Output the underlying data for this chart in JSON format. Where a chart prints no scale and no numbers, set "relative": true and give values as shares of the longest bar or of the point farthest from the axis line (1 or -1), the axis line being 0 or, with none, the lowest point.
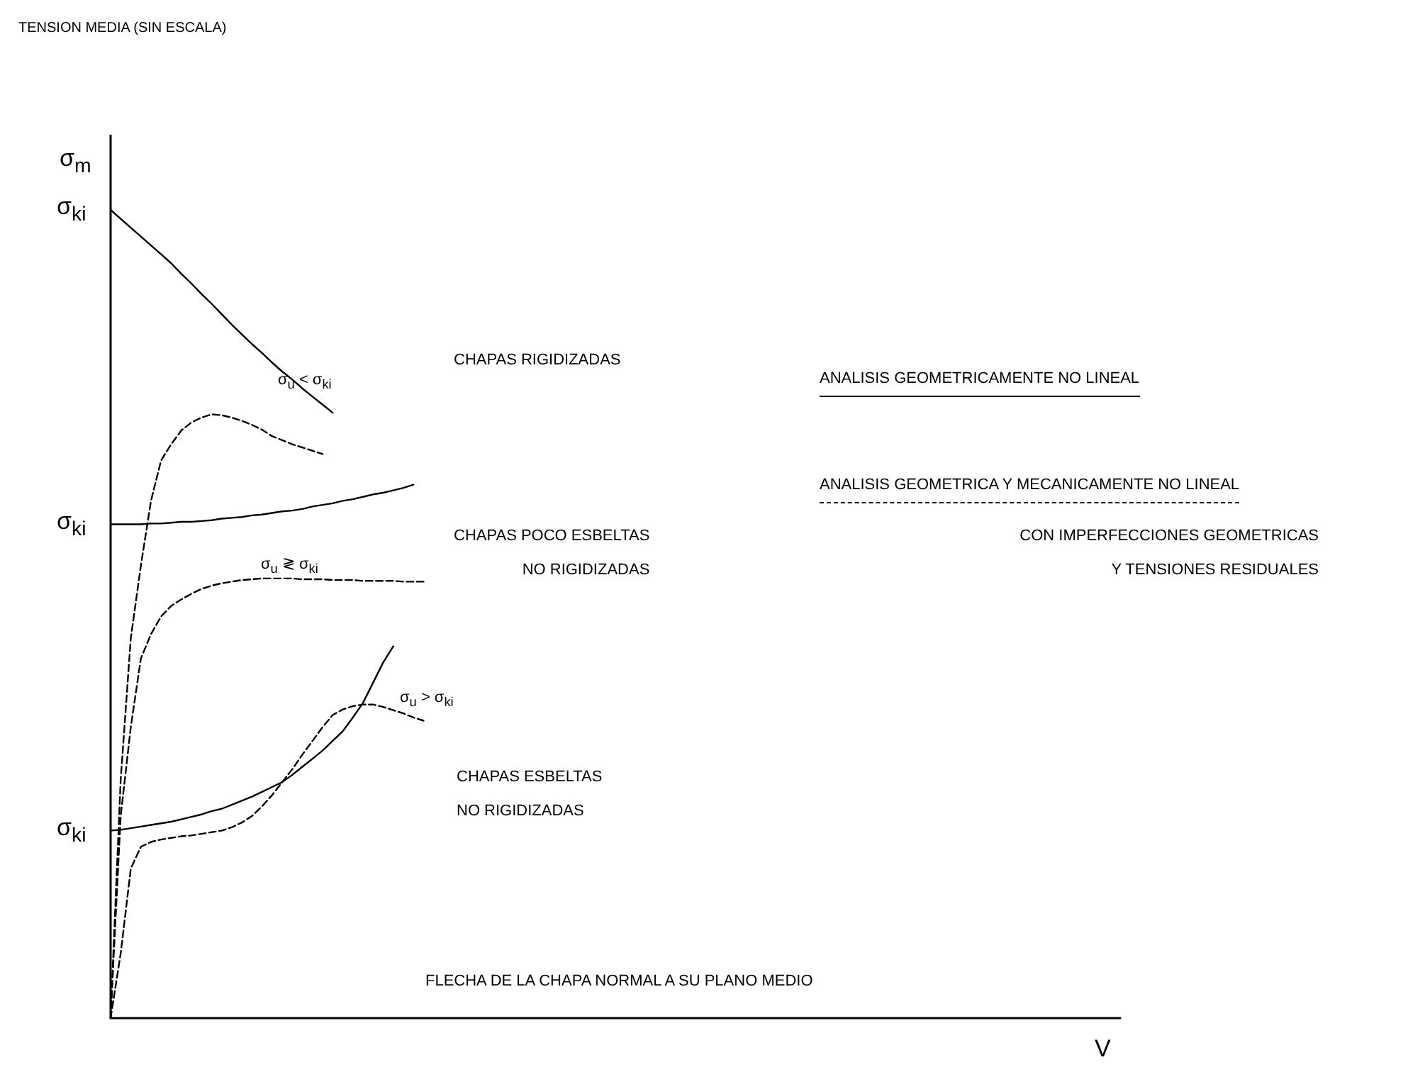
{
  "chart_data": {
    "type": "line",
    "relative": true,
    "title": "TENSION MEDIA (SIN ESCALA)",
    "ylabel": "σ$_{m}$",
    "xlabel": "V",
    "marker": "none",
    "color": "#000000",
    "categories": [
      null,
      null,
      null,
      null,
      null,
      null,
      null,
      null,
      null,
      null,
      null,
      null,
      null,
      null,
      null,
      null,
      null,
      null,
      null,
      null,
      null,
      null,
      null,
      null,
      null,
      null,
      null,
      null,
      null,
      null,
      null,
      null,
      null,
      null,
      null,
      null,
      null,
      null,
      null,
      null,
      null,
      null,
      null,
      null,
      null,
      null,
      null,
      null,
      null,
      null,
      null,
      null,
      null,
      null,
      null,
      null,
      null,
      null,
      null,
      null,
      null,
      null,
      null,
      null,
      null,
      null,
      null,
      null,
      null,
      null,
      null,
      null,
      null,
      null,
      null,
      null,
      null,
      null,
      null,
      null,
      null,
      null,
      null,
      null,
      null,
      null,
      null,
      null,
      null,
      null,
      null,
      null,
      null,
      null,
      null,
      null,
      null,
      null,
      null,
      null,
      null
    ],
    "series": [
      {
        "line_style": "solid",
        "values": [
          1.0,
          0.989,
          0.978,
          0.967,
          0.956,
          0.945,
          0.934,
          0.921,
          0.909,
          0.896,
          0.884,
          0.871,
          0.858,
          0.846,
          0.834,
          0.823,
          0.811,
          0.8,
          0.79,
          0.779,
          0.769,
          0.759,
          0.749,
          null,
          null,
          null,
          null,
          null,
          null,
          null,
          null,
          null,
          null,
          null,
          null,
          null,
          null,
          null,
          null,
          null,
          null,
          null,
          null,
          null,
          null,
          null,
          null,
          null,
          null,
          null,
          null,
          null,
          null,
          null,
          null,
          null,
          null,
          null,
          null,
          null,
          null,
          null,
          null,
          null,
          null,
          null,
          null,
          null,
          null,
          null,
          null,
          null,
          null,
          null,
          null,
          null,
          null,
          null,
          null,
          null,
          null,
          null,
          null,
          null,
          null,
          null,
          null,
          null,
          null,
          null,
          null,
          null,
          null,
          null,
          null,
          null,
          null,
          null,
          null,
          null,
          null
        ]
      },
      {
        "line_style": "dashed",
        "values": [
          0,
          0.295,
          0.47,
          0.56,
          0.64,
          0.69,
          0.71,
          0.727,
          0.737,
          0.743,
          0.747,
          0.746,
          0.743,
          0.739,
          0.734,
          0.728,
          0.72,
          0.715,
          0.71,
          0.706,
          0.702,
          0.698,
          null,
          null,
          null,
          null,
          null,
          null,
          null,
          null,
          null,
          null,
          null,
          null,
          null,
          null,
          null,
          null,
          null,
          null,
          null,
          null,
          null,
          null,
          null,
          null,
          null,
          null,
          null,
          null,
          null,
          null,
          null,
          null,
          null,
          null,
          null,
          null,
          null,
          null,
          null,
          null,
          null,
          null,
          null,
          null,
          null,
          null,
          null,
          null,
          null,
          null,
          null,
          null,
          null,
          null,
          null,
          null,
          null,
          null,
          null,
          null,
          null,
          null,
          null,
          null,
          null,
          null,
          null,
          null,
          null,
          null,
          null,
          null,
          null,
          null,
          null,
          null,
          null,
          null,
          null
        ]
      },
      {
        "line_style": "solid",
        "values": [
          0.611,
          0.611,
          0.611,
          0.611,
          0.612,
          0.612,
          0.613,
          0.614,
          0.614,
          0.615,
          0.616,
          0.618,
          0.619,
          0.62,
          0.622,
          0.623,
          0.625,
          0.627,
          0.628,
          0.63,
          0.633,
          0.635,
          0.637,
          0.64,
          0.642,
          0.645,
          0.648,
          0.65,
          0.653,
          0.656,
          0.66,
          null,
          null,
          null,
          null,
          null,
          null,
          null,
          null,
          null,
          null,
          null,
          null,
          null,
          null,
          null,
          null,
          null,
          null,
          null,
          null,
          null,
          null,
          null,
          null,
          null,
          null,
          null,
          null,
          null,
          null,
          null,
          null,
          null,
          null,
          null,
          null,
          null,
          null,
          null,
          null,
          null,
          null,
          null,
          null,
          null,
          null,
          null,
          null,
          null,
          null,
          null,
          null,
          null,
          null,
          null,
          null,
          null,
          null,
          null,
          null,
          null,
          null,
          null,
          null,
          null,
          null,
          null,
          null,
          null,
          null
        ]
      },
      {
        "line_style": "dashed",
        "values": [
          0,
          0.25,
          0.36,
          0.445,
          0.475,
          0.497,
          0.51,
          0.518,
          0.525,
          0.531,
          0.535,
          0.538,
          0.54,
          0.542,
          0.543,
          0.544,
          0.544,
          0.544,
          0.544,
          0.543,
          0.543,
          0.543,
          0.542,
          0.542,
          0.542,
          0.541,
          0.541,
          0.541,
          0.541,
          0.54,
          0.54,
          0.54,
          null,
          null,
          null,
          null,
          null,
          null,
          null,
          null,
          null,
          null,
          null,
          null,
          null,
          null,
          null,
          null,
          null,
          null,
          null,
          null,
          null,
          null,
          null,
          null,
          null,
          null,
          null,
          null,
          null,
          null,
          null,
          null,
          null,
          null,
          null,
          null,
          null,
          null,
          null,
          null,
          null,
          null,
          null,
          null,
          null,
          null,
          null,
          null,
          null,
          null,
          null,
          null,
          null,
          null,
          null,
          null,
          null,
          null,
          null,
          null,
          null,
          null,
          null,
          null,
          null,
          null,
          null,
          null,
          null
        ]
      },
      {
        "line_style": "solid",
        "values": [
          0.232,
          0.233,
          0.235,
          0.237,
          0.239,
          0.241,
          0.243,
          0.246,
          0.249,
          0.252,
          0.256,
          0.259,
          0.264,
          0.269,
          0.274,
          0.28,
          0.286,
          0.292,
          0.301,
          0.311,
          0.321,
          0.331,
          0.343,
          0.355,
          0.372,
          0.39,
          0.415,
          0.44,
          0.46,
          null,
          null,
          null,
          null,
          null,
          null,
          null,
          null,
          null,
          null,
          null,
          null,
          null,
          null,
          null,
          null,
          null,
          null,
          null,
          null,
          null,
          null,
          null,
          null,
          null,
          null,
          null,
          null,
          null,
          null,
          null,
          null,
          null,
          null,
          null,
          null,
          null,
          null,
          null,
          null,
          null,
          null,
          null,
          null,
          null,
          null,
          null,
          null,
          null,
          null,
          null,
          null,
          null,
          null,
          null,
          null,
          null,
          null,
          null,
          null,
          null,
          null,
          null,
          null,
          null,
          null,
          null,
          null,
          null,
          null,
          null,
          null
        ]
      },
      {
        "line_style": "dashed",
        "values": [
          0,
          0.08,
          0.185,
          0.212,
          0.218,
          0.221,
          0.223,
          0.225,
          0.226,
          0.228,
          0.23,
          0.232,
          0.236,
          0.242,
          0.25,
          0.262,
          0.276,
          0.292,
          0.308,
          0.326,
          0.343,
          0.36,
          0.375,
          0.382,
          0.386,
          0.388,
          0.388,
          0.385,
          0.381,
          0.377,
          0.372,
          0.368,
          null,
          null,
          null,
          null,
          null,
          null,
          null,
          null,
          null,
          null,
          null,
          null,
          null,
          null,
          null,
          null,
          null,
          null,
          null,
          null,
          null,
          null,
          null,
          null,
          null,
          null,
          null,
          null,
          null,
          null,
          null,
          null,
          null,
          null,
          null,
          null,
          null,
          null,
          null,
          null,
          null,
          null,
          null,
          null,
          null,
          null,
          null,
          null,
          null,
          null,
          null,
          null,
          null,
          null,
          null,
          null,
          null,
          null,
          null,
          null,
          null,
          null,
          null,
          null,
          null,
          null,
          null,
          null,
          null
        ]
      }
    ],
    "annotations": [
      "σ$_{ki}$",
      "σ$_{ki}$",
      "σ$_{ki}$",
      "CHAPAS RIGIDIZADAS",
      "σ$_{u}$ < σ$_{ki}$",
      "CHAPAS POCO ESBELTAS\nNO RIGIDIZADAS",
      "σ$_{u}$ ≷ σ$_{ki}$",
      "σ$_{u}$ > σ$_{ki}$",
      "CHAPAS ESBELTAS\nNO RIGIDIZADAS",
      "ANALISIS GEOMETRICAMENTE NO LINEAL",
      "ANALISIS GEOMETRICA Y MECANICAMENTE NO LINEAL",
      "CON IMPERFECCIONES GEOMETRICAS\nY TENSIONES RESIDUALES",
      "FLECHA DE LA CHAPA NORMAL A SU PLANO MEDIO"
    ]
  }
}
